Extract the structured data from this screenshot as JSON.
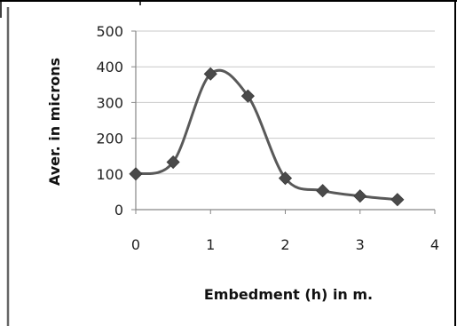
{
  "chart_data": {
    "type": "line",
    "title": "",
    "xlabel": "Embedment (h) in m.",
    "ylabel": "Aver. in microns",
    "xlim": [
      0,
      4
    ],
    "ylim": [
      0,
      500
    ],
    "x_ticks": [
      0,
      1,
      2,
      3,
      4
    ],
    "y_ticks": [
      0,
      100,
      200,
      300,
      400,
      500
    ],
    "grid": "horizontal",
    "legend": "none",
    "smoothed": true,
    "marker": "diamond",
    "colors": {
      "line": "#595959",
      "marker": "#4a4a4a",
      "grid": "#c8c8c8",
      "axis": "#868686"
    },
    "series": [
      {
        "x": [
          0,
          0.5,
          1,
          1.5,
          2,
          2.5,
          3,
          3.5
        ],
        "y": [
          100,
          133,
          380,
          318,
          88,
          53,
          38,
          28
        ]
      }
    ]
  }
}
